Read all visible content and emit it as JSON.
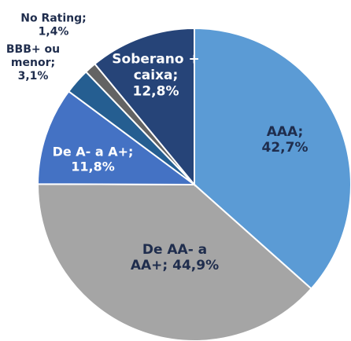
{
  "chart_data": {
    "type": "pie",
    "label_lines": [
      [
        "AAA;",
        "42,7%"
      ],
      [
        "De AA- a",
        "AA+; 44,9%"
      ],
      [
        "De A- a A+;",
        "11,8%"
      ],
      [
        "BBB+ ou",
        "menor;",
        "3,1%"
      ],
      [
        "No Rating;",
        "1,4%"
      ],
      [
        "Soberano +",
        "caixa;",
        "12,8%"
      ]
    ],
    "values": [
      42.7,
      44.9,
      11.8,
      3.1,
      1.4,
      12.8
    ],
    "colors": [
      "#5b9bd5",
      "#a5a5a5",
      "#4472c4",
      "#255e91",
      "#636363",
      "#264478"
    ]
  }
}
